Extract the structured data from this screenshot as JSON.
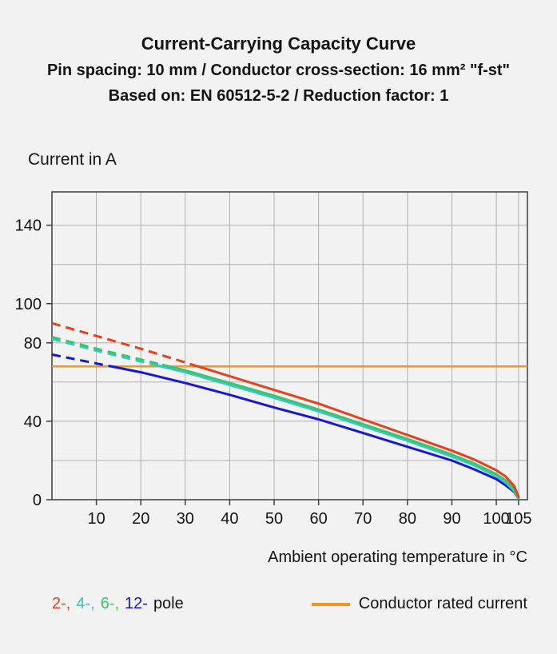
{
  "header": {
    "title": "Current-Carrying Capacity Curve",
    "subtitle1": "Pin spacing: 10 mm / Conductor cross-section: 16 mm² \"f-st\"",
    "subtitle2": "Based on: EN 60512-5-2 / Reduction factor: 1"
  },
  "axes": {
    "y_title": "Current in A",
    "x_title": "Ambient operating temperature in °C"
  },
  "legend": {
    "pole_items": [
      {
        "label": "2-,",
        "color": "#e6401e"
      },
      {
        "label": "4-,",
        "color": "#36c8c8"
      },
      {
        "label": "6-,",
        "color": "#3fc46e"
      },
      {
        "label": "12-",
        "color": "#1717d4"
      }
    ],
    "pole_suffix": "pole",
    "rated_label": "Conductor rated current"
  },
  "colors": {
    "grid": "#b0b0b0",
    "frame": "#3c3c3c",
    "background": "#f2f2f2",
    "text": "#141414"
  },
  "chart_data": {
    "type": "line",
    "title": "Current-Carrying Capacity Curve",
    "xlabel": "Ambient operating temperature in °C",
    "ylabel": "Current in A",
    "xlim": [
      0,
      107
    ],
    "ylim": [
      0,
      157
    ],
    "grid": true,
    "legend_position": "bottom",
    "x_ticks": [
      {
        "v": 10,
        "label": "10"
      },
      {
        "v": 20,
        "label": "20"
      },
      {
        "v": 30,
        "label": "30"
      },
      {
        "v": 40,
        "label": "40"
      },
      {
        "v": 50,
        "label": "50"
      },
      {
        "v": 60,
        "label": "60"
      },
      {
        "v": 70,
        "label": "70"
      },
      {
        "v": 80,
        "label": "80"
      },
      {
        "v": 90,
        "label": "90"
      },
      {
        "v": 100,
        "label": "100"
      },
      {
        "v": 105,
        "label": "105"
      }
    ],
    "y_ticks": [
      {
        "v": 0,
        "label": "0"
      },
      {
        "v": 40,
        "label": "40"
      },
      {
        "v": 80,
        "label": "80"
      },
      {
        "v": 100,
        "label": "100"
      },
      {
        "v": 140,
        "label": "140"
      }
    ],
    "x_gridlines": [
      10,
      20,
      30,
      40,
      50,
      60,
      70,
      80,
      90,
      100,
      105
    ],
    "y_gridlines": [
      20,
      40,
      60,
      80,
      100,
      120,
      140
    ],
    "rated_current": {
      "label": "Conductor rated current",
      "value": 68,
      "color": "#f5941e"
    },
    "series": [
      {
        "name": "12-pole",
        "color": "#1717d4",
        "dashed_until": 13,
        "points": [
          [
            0,
            74
          ],
          [
            10,
            69.5
          ],
          [
            20,
            65
          ],
          [
            30,
            59.5
          ],
          [
            40,
            53.5
          ],
          [
            50,
            47
          ],
          [
            60,
            41
          ],
          [
            70,
            34
          ],
          [
            80,
            27
          ],
          [
            90,
            20
          ],
          [
            95,
            15.5
          ],
          [
            100,
            10.5
          ],
          [
            102,
            7.5
          ],
          [
            104,
            4
          ],
          [
            105,
            0.5
          ]
        ]
      },
      {
        "name": "4-pole",
        "color": "#36c8c8",
        "dashed_until": 24,
        "points": [
          [
            0,
            82
          ],
          [
            10,
            76
          ],
          [
            20,
            70.5
          ],
          [
            30,
            65
          ],
          [
            40,
            58.5
          ],
          [
            50,
            52
          ],
          [
            60,
            45
          ],
          [
            70,
            37.5
          ],
          [
            80,
            30
          ],
          [
            90,
            22
          ],
          [
            95,
            17.5
          ],
          [
            100,
            12
          ],
          [
            102,
            9
          ],
          [
            104,
            4.5
          ],
          [
            105,
            0.5
          ]
        ]
      },
      {
        "name": "6-pole",
        "color": "#3fc46e",
        "dashed_until": 25,
        "points": [
          [
            0,
            83
          ],
          [
            10,
            77
          ],
          [
            20,
            71.5
          ],
          [
            30,
            66
          ],
          [
            40,
            59.5
          ],
          [
            50,
            53
          ],
          [
            60,
            46
          ],
          [
            70,
            38.5
          ],
          [
            80,
            31
          ],
          [
            90,
            23
          ],
          [
            95,
            18.5
          ],
          [
            100,
            13
          ],
          [
            102,
            10
          ],
          [
            104,
            5.5
          ],
          [
            105,
            1
          ]
        ]
      },
      {
        "name": "2-pole",
        "color": "#e6401e",
        "dashed_until": 32,
        "points": [
          [
            0,
            90
          ],
          [
            10,
            83.5
          ],
          [
            20,
            77
          ],
          [
            30,
            70
          ],
          [
            40,
            63
          ],
          [
            50,
            56
          ],
          [
            60,
            49
          ],
          [
            70,
            41
          ],
          [
            80,
            33
          ],
          [
            90,
            25
          ],
          [
            95,
            20.5
          ],
          [
            100,
            15
          ],
          [
            102,
            12
          ],
          [
            104,
            7
          ],
          [
            105,
            1.5
          ]
        ]
      }
    ]
  }
}
